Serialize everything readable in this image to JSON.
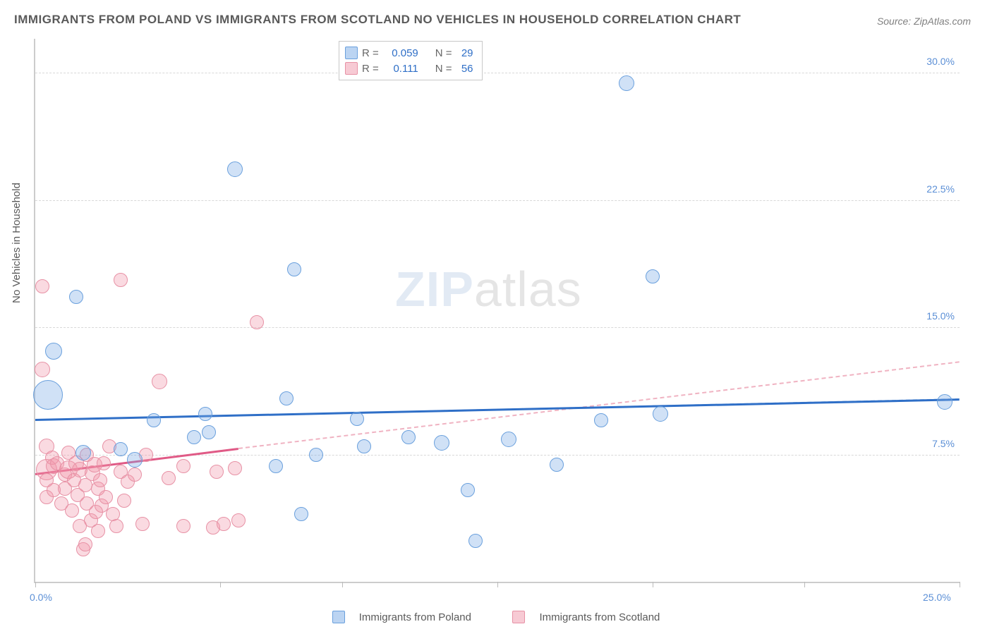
{
  "title": "IMMIGRANTS FROM POLAND VS IMMIGRANTS FROM SCOTLAND NO VEHICLES IN HOUSEHOLD CORRELATION CHART",
  "source": "Source: ZipAtlas.com",
  "ylabel": "No Vehicles in Household",
  "watermark_bold": "ZIP",
  "watermark_thin": "atlas",
  "chart": {
    "type": "scatter",
    "xlim": [
      0,
      25
    ],
    "ylim": [
      0,
      32
    ],
    "x_tick_positions": [
      0,
      5,
      8.3,
      12.5,
      16.7,
      20.8,
      25
    ],
    "y_grid": [
      7.5,
      15.0,
      22.5,
      30.0
    ],
    "y_tick_labels": [
      "7.5%",
      "15.0%",
      "22.5%",
      "30.0%"
    ],
    "x_tick_labels_shown": {
      "left": "0.0%",
      "right": "25.0%"
    },
    "background_color": "#ffffff",
    "grid_color": "#d8d8d8"
  },
  "series_a": {
    "name": "Immigrants from Poland",
    "color_fill": "rgba(120,170,230,0.35)",
    "color_stroke": "#6aa0dd",
    "trend_color": "#2f6fc7",
    "R": "0.059",
    "N": "29",
    "trend_solid": {
      "x1": 0.0,
      "y1": 9.6,
      "x2": 25.0,
      "y2": 10.8
    },
    "trend_dash": {
      "x1": 4.7,
      "y1": 9.8,
      "x2": 25.0,
      "y2": 10.8
    },
    "points": [
      {
        "x": 0.5,
        "y": 13.6,
        "r": 11
      },
      {
        "x": 0.35,
        "y": 11.0,
        "r": 20
      },
      {
        "x": 1.1,
        "y": 16.8,
        "r": 9
      },
      {
        "x": 1.3,
        "y": 7.6,
        "r": 10
      },
      {
        "x": 2.3,
        "y": 7.8,
        "r": 9
      },
      {
        "x": 2.7,
        "y": 7.2,
        "r": 10
      },
      {
        "x": 3.2,
        "y": 9.5,
        "r": 9
      },
      {
        "x": 4.3,
        "y": 8.5,
        "r": 9
      },
      {
        "x": 4.6,
        "y": 9.9,
        "r": 9
      },
      {
        "x": 4.7,
        "y": 8.8,
        "r": 9
      },
      {
        "x": 5.4,
        "y": 24.3,
        "r": 10
      },
      {
        "x": 6.5,
        "y": 6.8,
        "r": 9
      },
      {
        "x": 6.8,
        "y": 10.8,
        "r": 9
      },
      {
        "x": 7.0,
        "y": 18.4,
        "r": 9
      },
      {
        "x": 7.2,
        "y": 4.0,
        "r": 9
      },
      {
        "x": 7.6,
        "y": 7.5,
        "r": 9
      },
      {
        "x": 8.7,
        "y": 9.6,
        "r": 9
      },
      {
        "x": 8.9,
        "y": 8.0,
        "r": 9
      },
      {
        "x": 10.1,
        "y": 8.5,
        "r": 9
      },
      {
        "x": 11.0,
        "y": 8.2,
        "r": 10
      },
      {
        "x": 11.7,
        "y": 5.4,
        "r": 9
      },
      {
        "x": 11.9,
        "y": 2.4,
        "r": 9
      },
      {
        "x": 12.8,
        "y": 8.4,
        "r": 10
      },
      {
        "x": 14.1,
        "y": 6.9,
        "r": 9
      },
      {
        "x": 15.3,
        "y": 9.5,
        "r": 9
      },
      {
        "x": 16.0,
        "y": 29.4,
        "r": 10
      },
      {
        "x": 16.9,
        "y": 9.9,
        "r": 10
      },
      {
        "x": 16.7,
        "y": 18.0,
        "r": 9
      },
      {
        "x": 24.6,
        "y": 10.6,
        "r": 10
      }
    ]
  },
  "series_b": {
    "name": "Immigrants from Scotland",
    "color_fill": "rgba(240,150,170,0.35)",
    "color_stroke": "#e791a5",
    "trend_color": "#e05a86",
    "R": "0.111",
    "N": "56",
    "trend_solid": {
      "x1": 0.0,
      "y1": 6.4,
      "x2": 5.5,
      "y2": 7.9
    },
    "trend_dash": {
      "x1": 5.5,
      "y1": 7.9,
      "x2": 25.0,
      "y2": 13.0
    },
    "points": [
      {
        "x": 0.2,
        "y": 17.4,
        "r": 9
      },
      {
        "x": 0.2,
        "y": 12.5,
        "r": 10
      },
      {
        "x": 0.3,
        "y": 8.0,
        "r": 10
      },
      {
        "x": 0.3,
        "y": 6.6,
        "r": 14
      },
      {
        "x": 0.3,
        "y": 6.0,
        "r": 9
      },
      {
        "x": 0.3,
        "y": 5.0,
        "r": 9
      },
      {
        "x": 0.45,
        "y": 7.3,
        "r": 9
      },
      {
        "x": 0.5,
        "y": 6.8,
        "r": 10
      },
      {
        "x": 0.5,
        "y": 5.4,
        "r": 9
      },
      {
        "x": 0.6,
        "y": 7.0,
        "r": 9
      },
      {
        "x": 0.7,
        "y": 4.6,
        "r": 9
      },
      {
        "x": 0.8,
        "y": 6.3,
        "r": 9
      },
      {
        "x": 0.8,
        "y": 5.5,
        "r": 9
      },
      {
        "x": 0.9,
        "y": 6.6,
        "r": 12
      },
      {
        "x": 0.9,
        "y": 7.6,
        "r": 9
      },
      {
        "x": 1.0,
        "y": 4.2,
        "r": 9
      },
      {
        "x": 1.05,
        "y": 6.0,
        "r": 9
      },
      {
        "x": 1.1,
        "y": 7.0,
        "r": 10
      },
      {
        "x": 1.15,
        "y": 5.1,
        "r": 9
      },
      {
        "x": 1.2,
        "y": 3.3,
        "r": 9
      },
      {
        "x": 1.2,
        "y": 6.6,
        "r": 10
      },
      {
        "x": 1.3,
        "y": 1.9,
        "r": 9
      },
      {
        "x": 1.35,
        "y": 2.2,
        "r": 9
      },
      {
        "x": 1.35,
        "y": 5.7,
        "r": 9
      },
      {
        "x": 1.4,
        "y": 4.6,
        "r": 9
      },
      {
        "x": 1.4,
        "y": 7.5,
        "r": 9
      },
      {
        "x": 1.5,
        "y": 3.6,
        "r": 9
      },
      {
        "x": 1.55,
        "y": 6.4,
        "r": 10
      },
      {
        "x": 1.6,
        "y": 6.9,
        "r": 10
      },
      {
        "x": 1.65,
        "y": 4.1,
        "r": 9
      },
      {
        "x": 1.7,
        "y": 3.0,
        "r": 9
      },
      {
        "x": 1.7,
        "y": 5.5,
        "r": 9
      },
      {
        "x": 1.75,
        "y": 6.0,
        "r": 9
      },
      {
        "x": 1.8,
        "y": 4.5,
        "r": 9
      },
      {
        "x": 1.85,
        "y": 7.0,
        "r": 9
      },
      {
        "x": 1.9,
        "y": 5.0,
        "r": 9
      },
      {
        "x": 2.0,
        "y": 8.0,
        "r": 9
      },
      {
        "x": 2.1,
        "y": 4.0,
        "r": 9
      },
      {
        "x": 2.2,
        "y": 3.3,
        "r": 9
      },
      {
        "x": 2.3,
        "y": 6.5,
        "r": 9
      },
      {
        "x": 2.3,
        "y": 17.8,
        "r": 9
      },
      {
        "x": 2.4,
        "y": 4.8,
        "r": 9
      },
      {
        "x": 2.5,
        "y": 5.9,
        "r": 9
      },
      {
        "x": 2.7,
        "y": 6.3,
        "r": 9
      },
      {
        "x": 2.9,
        "y": 3.4,
        "r": 9
      },
      {
        "x": 3.0,
        "y": 7.5,
        "r": 9
      },
      {
        "x": 3.35,
        "y": 11.8,
        "r": 10
      },
      {
        "x": 3.6,
        "y": 6.1,
        "r": 9
      },
      {
        "x": 4.0,
        "y": 6.8,
        "r": 9
      },
      {
        "x": 4.0,
        "y": 3.3,
        "r": 9
      },
      {
        "x": 4.8,
        "y": 3.2,
        "r": 9
      },
      {
        "x": 4.9,
        "y": 6.5,
        "r": 9
      },
      {
        "x": 5.1,
        "y": 3.4,
        "r": 9
      },
      {
        "x": 5.4,
        "y": 6.7,
        "r": 9
      },
      {
        "x": 5.5,
        "y": 3.6,
        "r": 9
      },
      {
        "x": 6.0,
        "y": 15.3,
        "r": 9
      }
    ]
  },
  "legend_top": {
    "rows": [
      {
        "swatch": "sa",
        "R_label": "R =",
        "R_val": "0.059",
        "N_label": "N =",
        "N_val": "29"
      },
      {
        "swatch": "sb",
        "R_label": "R =",
        "R_val": "0.111",
        "N_label": "N =",
        "N_val": "56"
      }
    ]
  },
  "legend_bottom": {
    "items": [
      {
        "swatch": "sa",
        "label": "Immigrants from Poland"
      },
      {
        "swatch": "sb",
        "label": "Immigrants from Scotland"
      }
    ]
  }
}
